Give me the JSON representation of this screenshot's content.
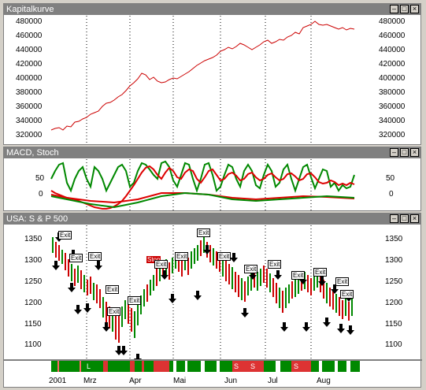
{
  "panes": {
    "equity": {
      "title": "Kapitalkurve"
    },
    "macd": {
      "title": "MACD, Stoch"
    },
    "price": {
      "title": "USA: S & P 500"
    }
  },
  "window_buttons": {
    "minimize": "–",
    "maximize": "□",
    "close": "×"
  },
  "equity_ticks": [
    "480000",
    "460000",
    "440000",
    "420000",
    "400000",
    "380000",
    "360000",
    "340000",
    "320000"
  ],
  "macd_ticks": [
    "50",
    "0"
  ],
  "price_ticks": [
    "1350",
    "1300",
    "1250",
    "1200",
    "1150",
    "1100"
  ],
  "months": [
    "2001",
    "Mrz",
    "Apr",
    "Mai",
    "Jun",
    "Jul",
    "Aug"
  ],
  "signal_labels": {
    "exit": "Exit",
    "stop": "Stop"
  },
  "strip_labels": [
    "L",
    "S",
    "S",
    "S"
  ],
  "colors": {
    "equity_line": "#cc0000",
    "macd_red": "#dd0000",
    "macd_green": "#008800",
    "up_bar": "#008800",
    "down_bar": "#cc0000"
  }
}
